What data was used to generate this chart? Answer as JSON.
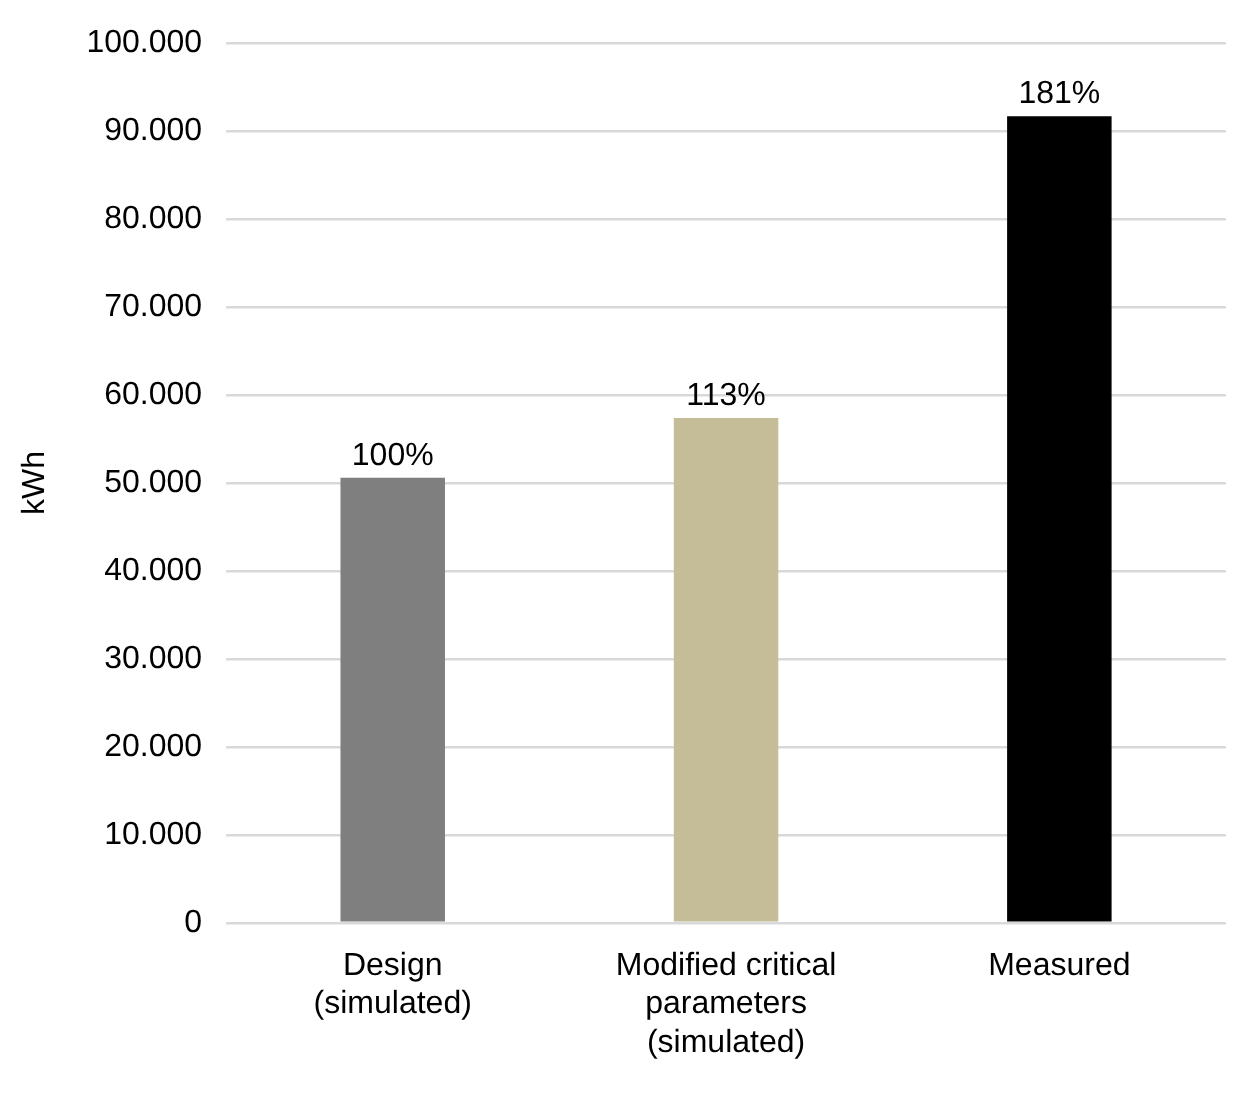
{
  "chart_data": {
    "type": "bar",
    "ylabel": "kWh",
    "categories": [
      "Design (simulated)",
      "Modified critical parameters (simulated)",
      "Measured"
    ],
    "values": [
      50600,
      57400,
      91700
    ],
    "colors": [
      "#7f7f7f",
      "#c4bd97",
      "#000000"
    ],
    "annotations": [
      {
        "text": "100%",
        "x": "Design (simulated)",
        "y": 50600
      },
      {
        "text": "113%",
        "x": "Modified critical parameters (simulated)",
        "y": 57400
      },
      {
        "text": "181%",
        "x": "Measured",
        "y": 91700
      }
    ],
    "ylim": [
      0,
      100000
    ],
    "yticks": [
      {
        "value": 0,
        "label": "0"
      },
      {
        "value": 10000,
        "label": "10.000"
      },
      {
        "value": 20000,
        "label": "20.000"
      },
      {
        "value": 30000,
        "label": "30.000"
      },
      {
        "value": 40000,
        "label": "40.000"
      },
      {
        "value": 50000,
        "label": "50.000"
      },
      {
        "value": 60000,
        "label": "60.000"
      },
      {
        "value": 70000,
        "label": "70.000"
      },
      {
        "value": 80000,
        "label": "80.000"
      },
      {
        "value": 90000,
        "label": "90.000"
      },
      {
        "value": 100000,
        "label": "100.000"
      }
    ],
    "grid": "y",
    "legend": false
  }
}
